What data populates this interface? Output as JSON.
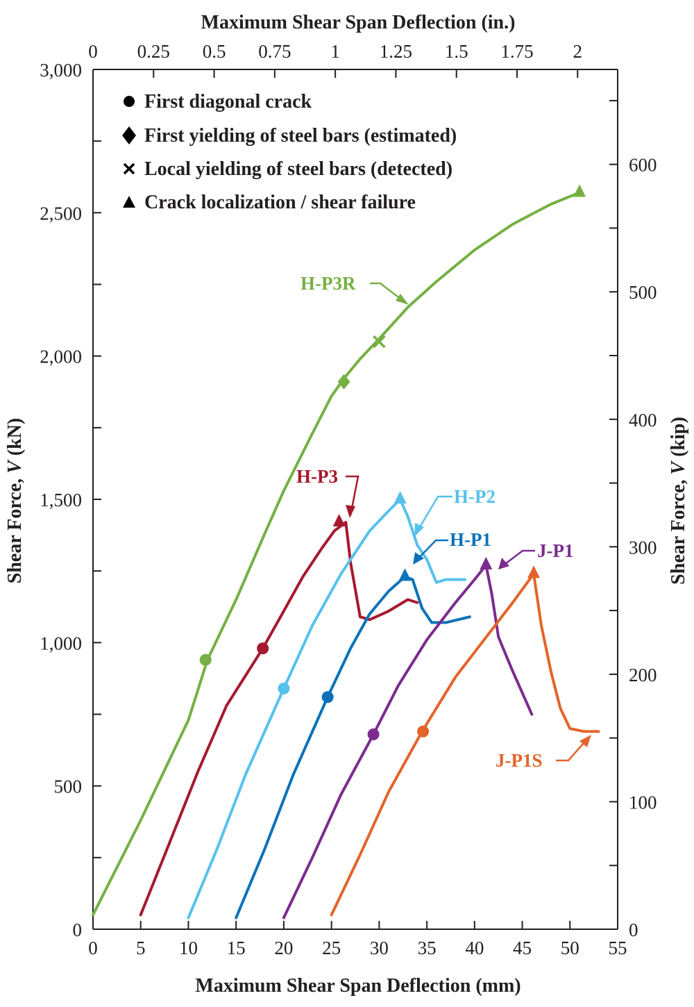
{
  "chart_data": {
    "type": "line",
    "top_axis": {
      "title": "Maximum Shear Span Deflection (in.)",
      "ticks": [
        0,
        0.25,
        0.5,
        0.75,
        1,
        1.25,
        1.5,
        1.75,
        2
      ],
      "tick_labels": [
        "0",
        "0.25",
        "0.5",
        "0.75",
        "1",
        "1.25",
        "1.5",
        "1.75",
        "2"
      ],
      "mm_per_unit": 25.4
    },
    "xaxis": {
      "title": "Maximum Shear Span Deflection (mm)",
      "range": [
        0,
        55
      ],
      "ticks": [
        0,
        5,
        10,
        15,
        20,
        25,
        30,
        35,
        40,
        45,
        50,
        55
      ],
      "tick_labels": [
        "0",
        "5",
        "10",
        "15",
        "20",
        "25",
        "30",
        "35",
        "40",
        "45",
        "50",
        "55"
      ]
    },
    "yaxis": {
      "title_prefix": "Shear Force, ",
      "title_var": "V",
      "title_suffix": " (kN)",
      "range": [
        0,
        3000
      ],
      "ticks": [
        0,
        500,
        1000,
        1500,
        2000,
        2500,
        3000
      ],
      "tick_labels": [
        "0",
        "500",
        "1,000",
        "1,500",
        "2,000",
        "2,500",
        "3,000"
      ],
      "minor_step": 250
    },
    "y2axis": {
      "title_prefix": "Shear Force, ",
      "title_var": "V",
      "title_suffix": " (kip)",
      "kN_per_unit": 4.448,
      "ticks": [
        0,
        100,
        200,
        300,
        400,
        500,
        600
      ],
      "tick_labels": [
        "0",
        "100",
        "200",
        "300",
        "400",
        "500",
        "600"
      ],
      "minor_step": 50
    },
    "legend": {
      "position": "top-left",
      "items": [
        {
          "marker": "circle",
          "label": "First diagonal crack"
        },
        {
          "marker": "diamond",
          "label": "First yielding of steel bars (estimated)"
        },
        {
          "marker": "cross",
          "label": "Local yielding of steel bars (detected)"
        },
        {
          "marker": "triangle",
          "label": "Crack localization / shear failure"
        }
      ]
    },
    "series": [
      {
        "name": "H-P3R",
        "color": "#76b043",
        "x": [
          0,
          5,
          10,
          12,
          15,
          18,
          20,
          23,
          25,
          26.5,
          28,
          30,
          33,
          36,
          40,
          44,
          48,
          51
        ],
        "y": [
          50,
          380,
          730,
          940,
          1150,
          1380,
          1530,
          1730,
          1860,
          1930,
          1990,
          2060,
          2170,
          2260,
          2370,
          2460,
          2530,
          2570
        ],
        "markers": [
          {
            "type": "circle",
            "x": 11.8,
            "y": 940
          },
          {
            "type": "diamond",
            "x": 26.3,
            "y": 1910
          },
          {
            "type": "cross",
            "x": 30,
            "y": 2050
          },
          {
            "type": "triangle",
            "x": 51,
            "y": 2570
          }
        ]
      },
      {
        "name": "H-P3",
        "color": "#a6192e",
        "x": [
          5,
          8,
          11,
          14,
          17.8,
          20,
          22,
          24,
          25.3,
          26.5,
          27,
          28,
          29,
          31,
          33,
          34
        ],
        "y": [
          50,
          300,
          550,
          780,
          980,
          1110,
          1230,
          1330,
          1390,
          1420,
          1280,
          1090,
          1080,
          1110,
          1150,
          1140
        ],
        "markers": [
          {
            "type": "circle",
            "x": 17.8,
            "y": 980
          },
          {
            "type": "triangle",
            "x": 25.8,
            "y": 1420
          }
        ]
      },
      {
        "name": "H-P2",
        "color": "#56c1ec",
        "x": [
          10,
          13,
          16,
          20,
          23,
          26,
          29,
          31,
          32.2,
          33,
          34,
          35,
          36,
          37,
          39
        ],
        "y": [
          40,
          280,
          540,
          840,
          1060,
          1240,
          1390,
          1460,
          1500,
          1440,
          1340,
          1290,
          1210,
          1220,
          1220
        ],
        "markers": [
          {
            "type": "circle",
            "x": 20,
            "y": 840
          },
          {
            "type": "triangle",
            "x": 32.2,
            "y": 1500
          }
        ]
      },
      {
        "name": "H-P1",
        "color": "#0b72b9",
        "x": [
          15,
          18,
          21,
          24.6,
          27,
          29,
          31,
          32.7,
          33.5,
          34.5,
          35.5,
          37,
          39.5
        ],
        "y": [
          40,
          280,
          540,
          810,
          980,
          1100,
          1180,
          1230,
          1220,
          1120,
          1070,
          1070,
          1090
        ],
        "markers": [
          {
            "type": "circle",
            "x": 24.6,
            "y": 810
          },
          {
            "type": "triangle",
            "x": 32.7,
            "y": 1230
          }
        ]
      },
      {
        "name": "J-P1",
        "color": "#7b2c8e",
        "x": [
          20,
          23,
          26,
          29.4,
          32,
          35,
          38,
          40,
          41.2,
          41.8,
          42.5,
          44,
          46
        ],
        "y": [
          40,
          250,
          470,
          680,
          850,
          1010,
          1140,
          1220,
          1270,
          1170,
          1020,
          900,
          750
        ],
        "markers": [
          {
            "type": "circle",
            "x": 29.4,
            "y": 680
          },
          {
            "type": "triangle",
            "x": 41.2,
            "y": 1270
          }
        ]
      },
      {
        "name": "J-P1S",
        "color": "#e3642a",
        "x": [
          25,
          28,
          31,
          34.5,
          38,
          41,
          44,
          46.2,
          47,
          48,
          49,
          50,
          51.5,
          53
        ],
        "y": [
          50,
          260,
          480,
          690,
          880,
          1010,
          1140,
          1240,
          1060,
          900,
          770,
          700,
          690,
          690
        ],
        "markers": [
          {
            "type": "circle",
            "x": 34.6,
            "y": 690
          },
          {
            "type": "triangle",
            "x": 46.2,
            "y": 1240
          }
        ]
      }
    ]
  }
}
